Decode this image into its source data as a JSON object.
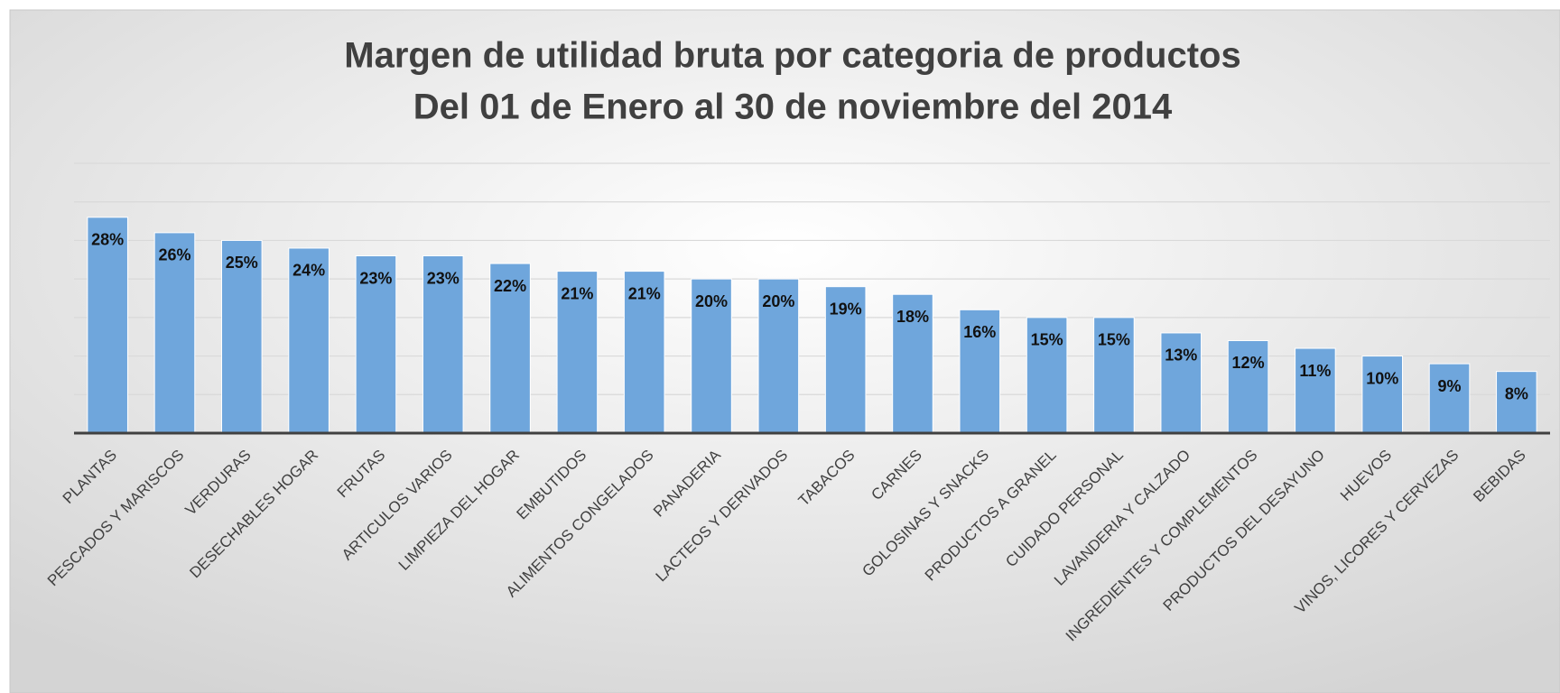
{
  "chart_data": {
    "type": "bar",
    "title": "Margen de utilidad bruta por categoria de productos",
    "subtitle": "Del 01 de Enero al 30 de noviembre del 2014",
    "categories": [
      "PLANTAS",
      "PESCADOS Y MARISCOS",
      "VERDURAS",
      "DESECHABLES HOGAR",
      "FRUTAS",
      "ARTICULOS VARIOS",
      "LIMPIEZA DEL HOGAR",
      "EMBUTIDOS",
      "ALIMENTOS CONGELADOS",
      "PANADERIA",
      "LACTEOS Y DERIVADOS",
      "TABACOS",
      "CARNES",
      "GOLOSINAS Y SNACKS",
      "PRODUCTOS A GRANEL",
      "CUIDADO PERSONAL",
      "LAVANDERIA Y CALZADO",
      "INGREDIENTES Y COMPLEMENTOS",
      "PRODUCTOS DEL DESAYUNO",
      "HUEVOS",
      "VINOS, LICORES Y CERVEZAS",
      "BEBIDAS"
    ],
    "values": [
      28,
      26,
      25,
      24,
      23,
      23,
      22,
      21,
      21,
      20,
      20,
      19,
      18,
      16,
      15,
      15,
      13,
      12,
      11,
      10,
      9,
      8
    ],
    "value_labels": [
      "28%",
      "26%",
      "25%",
      "24%",
      "23%",
      "23%",
      "22%",
      "21%",
      "21%",
      "20%",
      "20%",
      "19%",
      "18%",
      "16%",
      "15%",
      "15%",
      "13%",
      "12%",
      "11%",
      "10%",
      "9%",
      "8%"
    ],
    "color": "#6fa6dc",
    "ylim": [
      0,
      35
    ],
    "yticks": [
      0,
      5,
      10,
      15,
      20,
      25,
      30,
      35
    ],
    "ytick_labels": false,
    "grid": true
  }
}
